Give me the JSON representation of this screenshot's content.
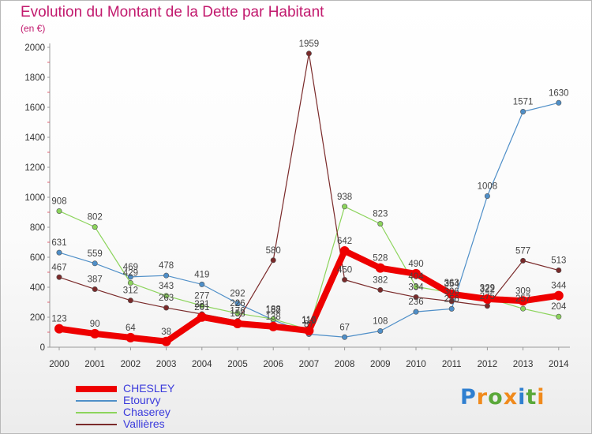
{
  "header": {
    "title": "Evolution du Montant de la Dette par Habitant",
    "subtitle": "(en €)"
  },
  "logo": {
    "text": "Proxiti"
  },
  "chart_data": {
    "type": "line",
    "title": "Evolution du Montant de la Dette par Habitant",
    "subtitle": "(en €)",
    "xlabel": "",
    "ylabel": "",
    "x": [
      2000,
      2001,
      2002,
      2003,
      2004,
      2005,
      2006,
      2007,
      2008,
      2009,
      2010,
      2011,
      2012,
      2013,
      2014
    ],
    "x_tick_labels": [
      "2000",
      "2001",
      "2002",
      "2003",
      "2004",
      "2005",
      "2006",
      "2007",
      "2008",
      "2009",
      "2010",
      "2011",
      "2012",
      "2013",
      "2014"
    ],
    "ylim": [
      0,
      2000
    ],
    "y_ticks": [
      0,
      200,
      400,
      600,
      800,
      1000,
      1200,
      1400,
      1600,
      1800,
      2000
    ],
    "y_tick_labels": [
      "0",
      "200",
      "400",
      "600",
      "800",
      "1000",
      "1200",
      "1400",
      "1600",
      "1800",
      "2000"
    ],
    "grid": false,
    "legend_position": "bottom-left",
    "series": [
      {
        "name": "CHESLEY",
        "color": "#ee0000",
        "values": [
          123,
          90,
          64,
          38,
          201,
          158,
          138,
          110,
          642,
          528,
          490,
          354,
          322,
          309,
          344
        ],
        "labels": [
          "123",
          "90",
          "64",
          "38",
          "201",
          "158",
          "138",
          "110",
          "642",
          "528",
          "490",
          "354",
          "322",
          "309",
          "344"
        ]
      },
      {
        "name": "Etourvy",
        "color": "#4f8fc8",
        "values": [
          631,
          559,
          469,
          478,
          419,
          292,
          182,
          87,
          67,
          108,
          236,
          256,
          1008,
          1571,
          1630
        ],
        "labels": [
          "631",
          "559",
          "469",
          "478",
          "419",
          "292",
          "182",
          "87",
          "67",
          "108",
          "236",
          "256",
          "1008",
          "1571",
          "1630"
        ]
      },
      {
        "name": "Chaserey",
        "color": "#8cd45c",
        "values": [
          908,
          802,
          429,
          343,
          277,
          226,
          188,
          116,
          938,
          823,
          404,
          363,
          329,
          257,
          204
        ],
        "labels": [
          "908",
          "802",
          "429",
          "343",
          "277",
          "226",
          "188",
          "116",
          "938",
          "823",
          "404",
          "363",
          "329",
          "257",
          "204"
        ]
      },
      {
        "name": "Vallières",
        "color": "#7a2a2a",
        "values": [
          467,
          387,
          312,
          263,
          221,
          176,
          580,
          1959,
          450,
          382,
          334,
          306,
          275,
          577,
          513
        ],
        "labels": [
          "467",
          "387",
          "312",
          "263",
          "221",
          "176",
          "580",
          "1959",
          "450",
          "382",
          "334",
          "306",
          "275",
          "577",
          "513"
        ]
      }
    ]
  }
}
